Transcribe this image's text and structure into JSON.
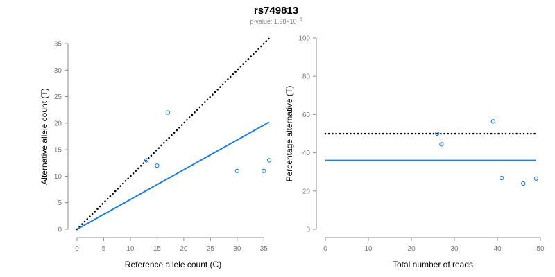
{
  "figure": {
    "title": "rs749813",
    "subtitle_prefix": "p-value: 1.98×10",
    "subtitle_exponent": "−5"
  },
  "colors": {
    "fit_line": "#1f7fe0",
    "points": "#1f7fe0",
    "expected_line": "#000000",
    "axis": "#8c8c8c",
    "tick_text": "#7a7a7a"
  },
  "chart_data": [
    {
      "type": "scatter",
      "title": "",
      "xlabel": "Reference allele count (C)",
      "ylabel": "Alternative allele count (T)",
      "xlim": [
        0,
        36
      ],
      "ylim": [
        0,
        35
      ],
      "xticks": [
        0,
        5,
        10,
        15,
        20,
        25,
        30,
        35
      ],
      "yticks": [
        0,
        5,
        10,
        15,
        20,
        25,
        30,
        35
      ],
      "points": [
        {
          "x": 13,
          "y": 13
        },
        {
          "x": 15,
          "y": 12
        },
        {
          "x": 17,
          "y": 22
        },
        {
          "x": 30,
          "y": 11
        },
        {
          "x": 35,
          "y": 11
        },
        {
          "x": 36,
          "y": 13
        }
      ],
      "lines": [
        {
          "style": "dotted",
          "color": "#000000",
          "x": [
            0,
            36
          ],
          "y": [
            0,
            36
          ]
        },
        {
          "style": "solid",
          "color": "#1f7fe0",
          "x": [
            0,
            36
          ],
          "y": [
            0,
            20.2
          ]
        }
      ],
      "grid": false,
      "legend": "none"
    },
    {
      "type": "scatter",
      "title": "",
      "xlabel": "Total number of reads",
      "ylabel": "Percentage alternative (T)",
      "xlim": [
        0,
        50
      ],
      "ylim": [
        0,
        100
      ],
      "xticks": [
        0,
        10,
        20,
        30,
        40,
        50
      ],
      "yticks": [
        0,
        20,
        40,
        60,
        80,
        100
      ],
      "points": [
        {
          "x": 26,
          "y": 50
        },
        {
          "x": 27,
          "y": 44.4
        },
        {
          "x": 39,
          "y": 56.4
        },
        {
          "x": 41,
          "y": 26.8
        },
        {
          "x": 46,
          "y": 23.9
        },
        {
          "x": 49,
          "y": 26.5
        }
      ],
      "lines": [
        {
          "style": "dotted",
          "color": "#000000",
          "x": [
            0,
            49
          ],
          "y": [
            50,
            50
          ]
        },
        {
          "style": "solid",
          "color": "#1f7fe0",
          "x": [
            0,
            49
          ],
          "y": [
            36,
            36
          ]
        }
      ],
      "grid": false,
      "legend": "none"
    }
  ]
}
